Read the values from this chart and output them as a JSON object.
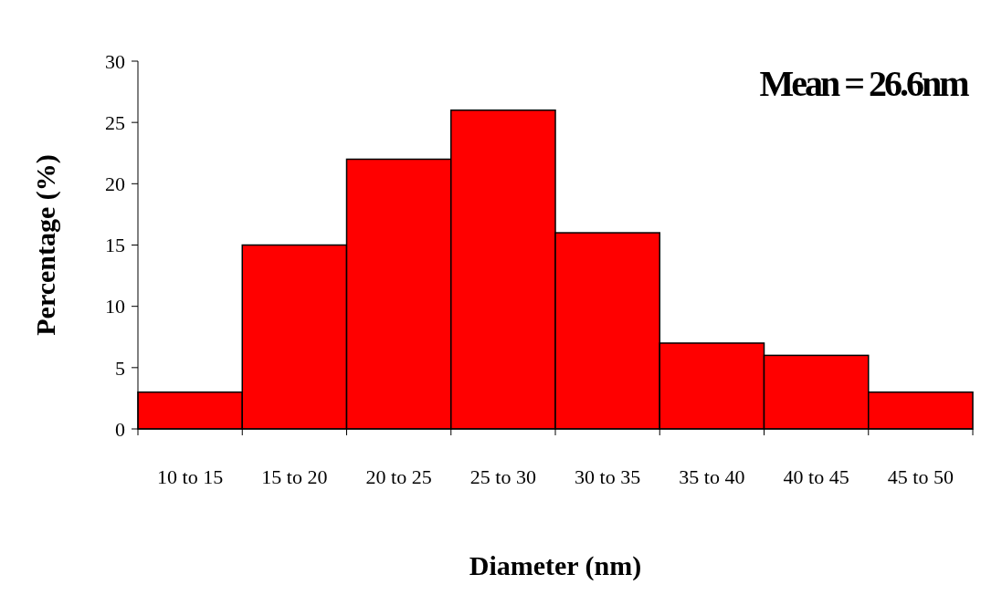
{
  "chart_data": {
    "type": "bar",
    "xlabel": "Diameter (nm)",
    "ylabel": "Percentage (%)",
    "categories": [
      "10 to 15",
      "15 to 20",
      "20 to 25",
      "25 to 30",
      "30 to 35",
      "35 to 40",
      "40 to 45",
      "45 to 50"
    ],
    "values": [
      3,
      15,
      22,
      26,
      16,
      7,
      6,
      3
    ],
    "color": "#ff0000",
    "ylim": [
      0,
      30
    ],
    "yticks": [
      0,
      5,
      10,
      15,
      20,
      25,
      30
    ],
    "annotations": [
      "Mean = 26.6nm"
    ]
  }
}
